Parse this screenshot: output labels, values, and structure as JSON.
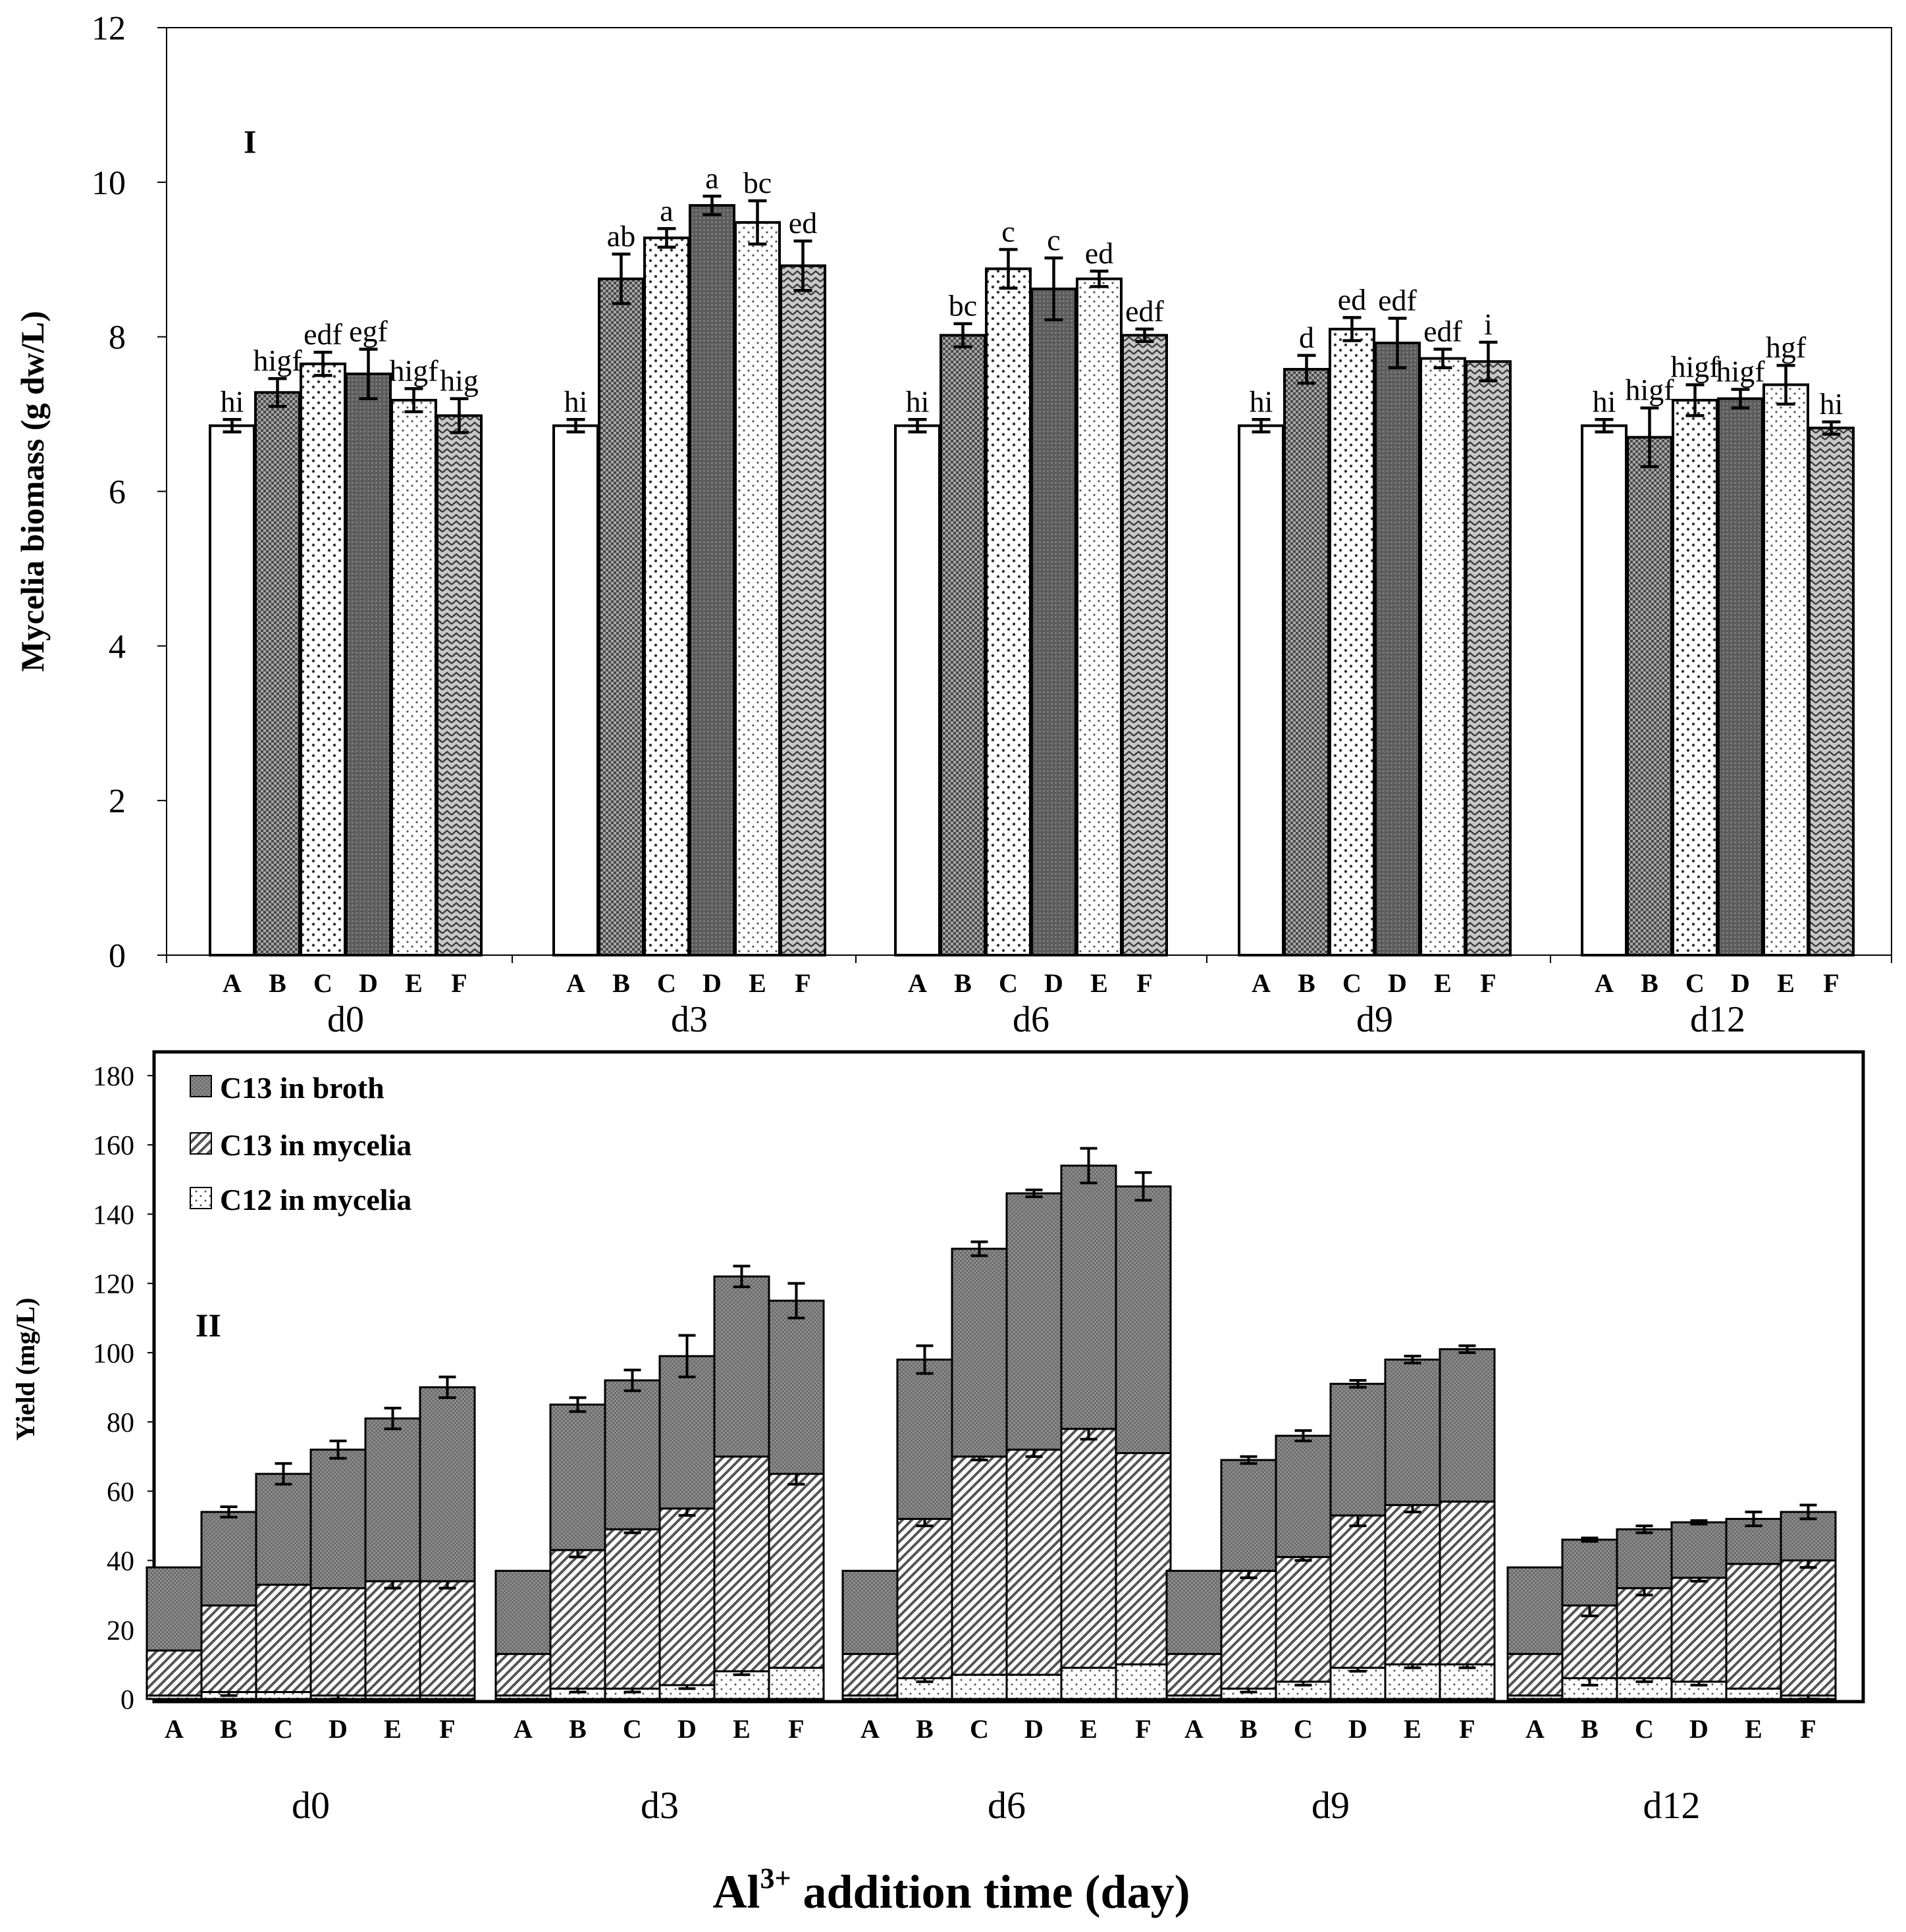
{
  "chart_data": [
    {
      "panel": "I",
      "type": "bar",
      "ylabel": "Mycelia biomass (g dw/L)",
      "ylim": [
        0,
        12
      ],
      "yticks": [
        0,
        2,
        4,
        6,
        8,
        10,
        12
      ],
      "groups": [
        "d0",
        "d3",
        "d6",
        "d9",
        "d12"
      ],
      "categories": [
        "A",
        "B",
        "C",
        "D",
        "E",
        "F"
      ],
      "values": [
        [
          6.85,
          7.28,
          7.65,
          7.52,
          7.18,
          6.98
        ],
        [
          6.85,
          8.75,
          9.28,
          9.7,
          9.48,
          8.92
        ],
        [
          6.85,
          8.02,
          8.88,
          8.62,
          8.75,
          8.02
        ],
        [
          6.85,
          7.58,
          8.1,
          7.92,
          7.72,
          7.68
        ],
        [
          6.85,
          6.7,
          7.18,
          7.2,
          7.38,
          6.82
        ]
      ],
      "errors": [
        [
          0.08,
          0.18,
          0.15,
          0.32,
          0.15,
          0.22
        ],
        [
          0.08,
          0.32,
          0.12,
          0.12,
          0.28,
          0.32
        ],
        [
          0.08,
          0.15,
          0.25,
          0.4,
          0.1,
          0.08
        ],
        [
          0.08,
          0.18,
          0.15,
          0.32,
          0.12,
          0.25
        ],
        [
          0.08,
          0.38,
          0.2,
          0.12,
          0.25,
          0.08
        ]
      ],
      "letters": [
        [
          "hi",
          "higf",
          "edf",
          "egf",
          "higf",
          "hig"
        ],
        [
          "hi",
          "ab",
          "a",
          "a",
          "bc",
          "ed"
        ],
        [
          "hi",
          "bc",
          "c",
          "c",
          "ed",
          "edf"
        ],
        [
          "hi",
          "d",
          "ed",
          "edf",
          "edf",
          "i"
        ],
        [
          "hi",
          "higf",
          "higf",
          "higf",
          "hgf",
          "hi"
        ]
      ]
    },
    {
      "panel": "II",
      "type": "bar",
      "stacked": true,
      "ylabel": "Yield (mg/L)",
      "xlabel": "Al3+ addition time (day)",
      "xlabel_parts": {
        "base": "Al",
        "sup": "3+",
        "rest": " addition time (day)"
      },
      "ylim": [
        0,
        180
      ],
      "yticks": [
        0,
        20,
        40,
        60,
        80,
        100,
        120,
        140,
        160,
        180
      ],
      "groups": [
        "d0",
        "d3",
        "d6",
        "d9",
        "d12"
      ],
      "categories": [
        "A",
        "B",
        "C",
        "D",
        "E",
        "F"
      ],
      "legend": [
        "C13 in broth",
        "C13 in mycelia",
        "C12 in mycelia"
      ],
      "series": [
        {
          "name": "C12 in mycelia",
          "values": [
            [
              1,
              2,
              2,
              1,
              1,
              1
            ],
            [
              1,
              3,
              3,
              4,
              8,
              9
            ],
            [
              1,
              6,
              7,
              7,
              9,
              10
            ],
            [
              1,
              3,
              5,
              9,
              10,
              10
            ],
            [
              1,
              6,
              6,
              5,
              3,
              1
            ]
          ]
        },
        {
          "name": "C13 in mycelia",
          "values": [
            [
              13,
              25,
              31,
              31,
              33,
              33
            ],
            [
              12,
              40,
              46,
              51,
              62,
              56
            ],
            [
              12,
              46,
              63,
              65,
              69,
              61
            ],
            [
              12,
              34,
              36,
              44,
              46,
              47
            ],
            [
              12,
              21,
              26,
              30,
              36,
              39
            ]
          ]
        },
        {
          "name": "C13 in broth",
          "values": [
            [
              24,
              27,
              32,
              40,
              47,
              56
            ],
            [
              24,
              42,
              43,
              44,
              52,
              50
            ],
            [
              24,
              46,
              60,
              74,
              76,
              77
            ],
            [
              24,
              32,
              35,
              38,
              42,
              44
            ],
            [
              25,
              19,
              17,
              16,
              13,
              14
            ]
          ]
        }
      ],
      "errors": {
        "C12 in mycelia": [
          [
            0,
            1,
            0,
            1,
            0,
            0
          ],
          [
            0,
            1,
            1,
            1,
            1,
            0
          ],
          [
            0,
            1,
            0,
            0,
            0,
            0
          ],
          [
            0,
            1,
            1,
            1,
            1,
            1
          ],
          [
            0,
            2,
            1,
            1,
            0,
            1
          ]
        ],
        "C13 in mycelia": [
          [
            0,
            0,
            0,
            0,
            2,
            2
          ],
          [
            0,
            2,
            1,
            2,
            0,
            3
          ],
          [
            0,
            2,
            1,
            2,
            3,
            0
          ],
          [
            0,
            2,
            1,
            3,
            2,
            0
          ],
          [
            0,
            3,
            2,
            1,
            0,
            2
          ]
        ],
        "C13 in broth": [
          [
            0,
            1.5,
            3,
            2.5,
            3,
            3
          ],
          [
            0,
            2,
            3,
            6,
            3,
            5
          ],
          [
            0,
            4,
            2,
            1,
            5,
            4
          ],
          [
            0,
            1,
            1.5,
            1,
            1,
            1
          ],
          [
            0,
            0.5,
            1,
            0.5,
            2,
            2
          ]
        ]
      }
    }
  ]
}
